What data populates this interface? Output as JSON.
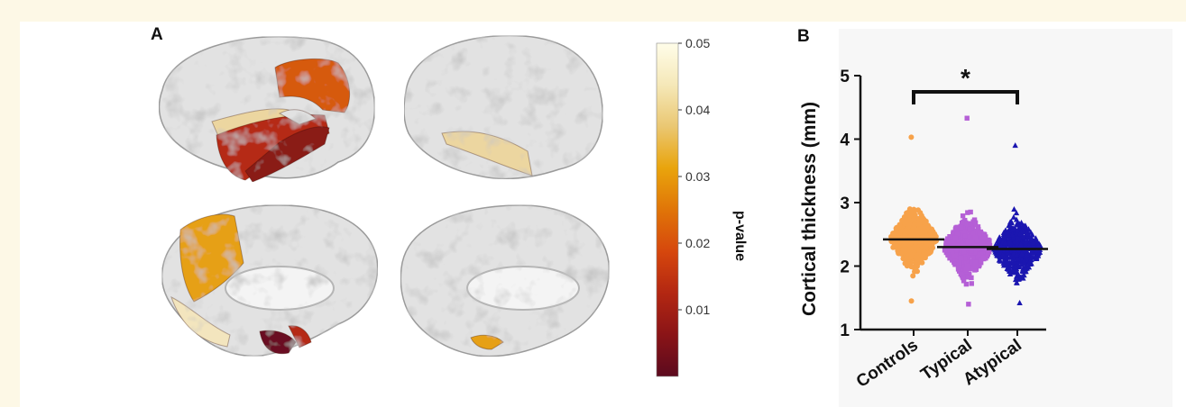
{
  "panels": {
    "a_label": "A",
    "b_label": "B"
  },
  "colorbar": {
    "title": "p-value",
    "ticks": [
      "0.05",
      "0.04",
      "0.03",
      "0.02",
      "0.01"
    ],
    "tick_values": [
      0.05,
      0.04,
      0.03,
      0.02,
      0.01
    ],
    "range": [
      0.0,
      0.05
    ],
    "colors": [
      "#5c0a1e",
      "#8a1417",
      "#b32712",
      "#d6470d",
      "#e07508",
      "#e9a40c",
      "#eac772",
      "#f5e8b8",
      "#fffde9"
    ]
  },
  "brain_views": [
    {
      "name": "lateral-left"
    },
    {
      "name": "lateral-right"
    },
    {
      "name": "medial-left"
    },
    {
      "name": "medial-right"
    }
  ],
  "region_colors": {
    "base": "#e2e2e2",
    "dark_red": "#8a1a17",
    "red": "#b52a14",
    "orange": "#d65a0c",
    "amber": "#e6a015",
    "pale": "#ecd6a0",
    "cream": "#f3e5be",
    "maroon": "#6a1020"
  },
  "chart_data": {
    "type": "scatter",
    "subtype": "dot-strip",
    "ylabel": "Cortical thickness (mm)",
    "xlabel": "",
    "ylim": [
      1,
      5
    ],
    "yticks": [
      "1",
      "2",
      "3",
      "4",
      "5"
    ],
    "ytick_values": [
      1,
      2,
      3,
      4,
      5
    ],
    "categories": [
      "Controls",
      "Typical",
      "Atypical"
    ],
    "series": [
      {
        "name": "Controls",
        "color": "#f7a24a",
        "marker": "circle",
        "mean": 2.42,
        "min": 1.45,
        "max": 4.03
      },
      {
        "name": "Typical",
        "color": "#b55fd6",
        "marker": "square",
        "mean": 2.3,
        "min": 1.4,
        "max": 4.33
      },
      {
        "name": "Atypical",
        "color": "#1b16b0",
        "marker": "triangle",
        "mean": 2.27,
        "min": 1.42,
        "max": 3.9
      }
    ],
    "significance": {
      "symbol": "*",
      "from": "Controls",
      "to": "Atypical"
    }
  }
}
